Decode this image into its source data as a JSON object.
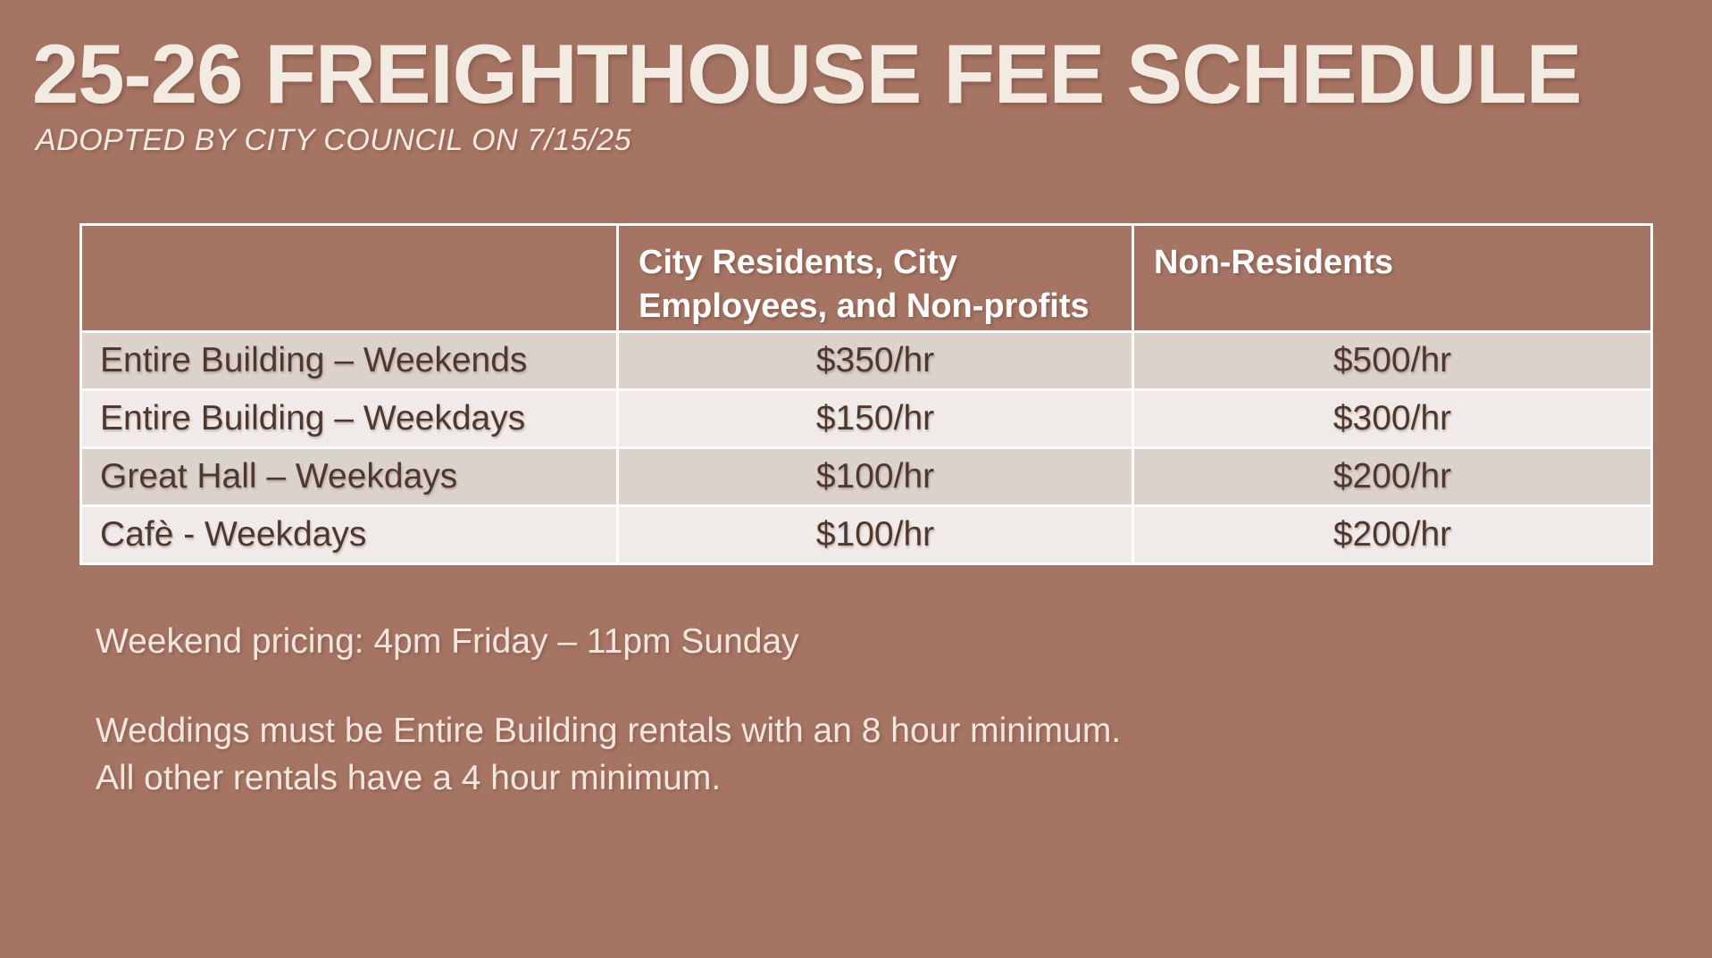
{
  "page": {
    "title": "25-26 FREIGHTHOUSE FEE SCHEDULE",
    "subtitle": "ADOPTED BY CITY COUNCIL ON 7/15/25"
  },
  "colors": {
    "background": "#A67463",
    "cream_text": "#F1EBE2",
    "header_text": "#FFFFFF",
    "row_dark": "#DBD2CB",
    "row_light": "#F0EBE8",
    "cell_text": "#4E382E",
    "table_border": "#FDFCFB"
  },
  "table": {
    "columns": [
      "",
      "City Residents, City Employees, and Non-profits",
      "Non-Residents"
    ],
    "rows": [
      {
        "label": "Entire Building – Weekends",
        "resident": "$350/hr",
        "non_resident": "$500/hr"
      },
      {
        "label": "Entire Building – Weekdays",
        "resident": "$150/hr",
        "non_resident": "$300/hr"
      },
      {
        "label": "Great Hall – Weekdays",
        "resident": "$100/hr",
        "non_resident": "$200/hr"
      },
      {
        "label": "Cafè - Weekdays",
        "resident": "$100/hr",
        "non_resident": "$200/hr"
      }
    ]
  },
  "notes": {
    "weekend_pricing": "Weekend pricing: 4pm Friday – 11pm Sunday",
    "minimums": "Weddings must be Entire Building rentals with an 8 hour minimum.\nAll other rentals have a 4 hour minimum."
  }
}
